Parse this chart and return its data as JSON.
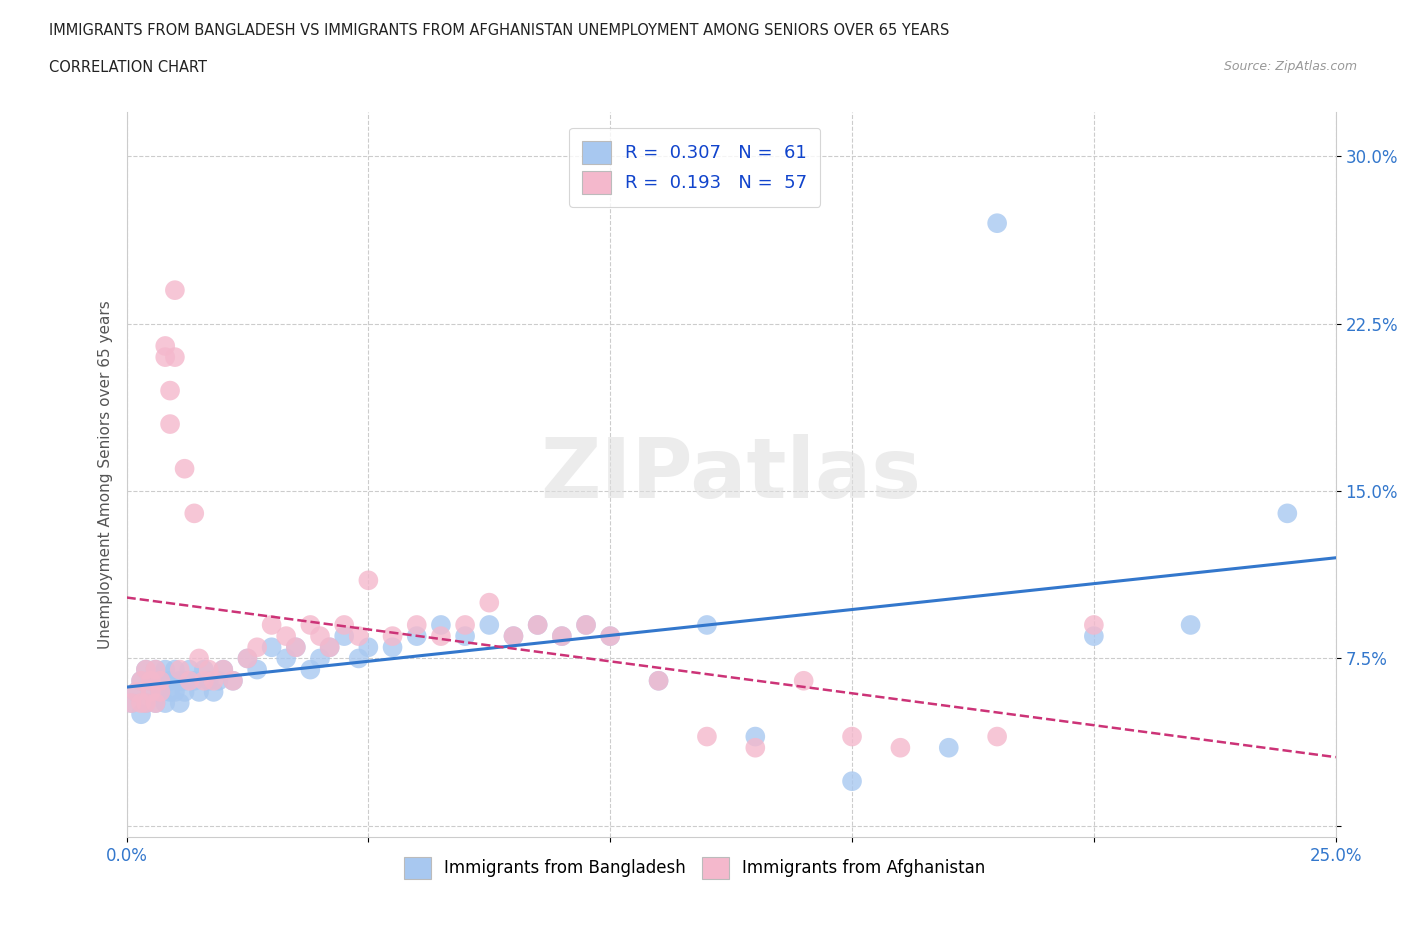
{
  "title_line1": "IMMIGRANTS FROM BANGLADESH VS IMMIGRANTS FROM AFGHANISTAN UNEMPLOYMENT AMONG SENIORS OVER 65 YEARS",
  "title_line2": "CORRELATION CHART",
  "source": "Source: ZipAtlas.com",
  "ylabel": "Unemployment Among Seniors over 65 years",
  "xlim": [
    0.0,
    0.25
  ],
  "ylim": [
    -0.005,
    0.32
  ],
  "xticks": [
    0.0,
    0.05,
    0.1,
    0.15,
    0.2,
    0.25
  ],
  "xticklabels": [
    "0.0%",
    "",
    "",
    "",
    "",
    "25.0%"
  ],
  "yticks": [
    0.0,
    0.075,
    0.15,
    0.225,
    0.3
  ],
  "yticklabels": [
    "",
    "7.5%",
    "15.0%",
    "22.5%",
    "30.0%"
  ],
  "R_bangladesh": 0.307,
  "N_bangladesh": 61,
  "R_afghanistan": 0.193,
  "N_afghanistan": 57,
  "color_bangladesh": "#a8c8f0",
  "color_afghanistan": "#f4b8cc",
  "line_color_bangladesh": "#3377cc",
  "line_color_afghanistan": "#cc3377",
  "tick_color": "#3377cc",
  "legend_text_color": "#1144cc",
  "legend_label_bangladesh": "Immigrants from Bangladesh",
  "legend_label_afghanistan": "Immigrants from Afghanistan",
  "watermark": "ZIPatlas",
  "bd_x": [
    0.001,
    0.002,
    0.003,
    0.003,
    0.004,
    0.004,
    0.005,
    0.005,
    0.006,
    0.006,
    0.007,
    0.007,
    0.008,
    0.008,
    0.009,
    0.009,
    0.01,
    0.01,
    0.011,
    0.011,
    0.012,
    0.012,
    0.013,
    0.014,
    0.015,
    0.016,
    0.017,
    0.018,
    0.019,
    0.02,
    0.022,
    0.025,
    0.027,
    0.03,
    0.033,
    0.035,
    0.038,
    0.04,
    0.042,
    0.045,
    0.048,
    0.05,
    0.055,
    0.06,
    0.065,
    0.07,
    0.075,
    0.08,
    0.085,
    0.09,
    0.095,
    0.1,
    0.11,
    0.12,
    0.13,
    0.15,
    0.17,
    0.18,
    0.2,
    0.22,
    0.24
  ],
  "bd_y": [
    0.055,
    0.06,
    0.065,
    0.05,
    0.07,
    0.055,
    0.06,
    0.065,
    0.07,
    0.055,
    0.06,
    0.065,
    0.07,
    0.055,
    0.06,
    0.065,
    0.07,
    0.06,
    0.065,
    0.055,
    0.06,
    0.065,
    0.07,
    0.065,
    0.06,
    0.07,
    0.065,
    0.06,
    0.065,
    0.07,
    0.065,
    0.075,
    0.07,
    0.08,
    0.075,
    0.08,
    0.07,
    0.075,
    0.08,
    0.085,
    0.075,
    0.08,
    0.08,
    0.085,
    0.09,
    0.085,
    0.09,
    0.085,
    0.09,
    0.085,
    0.09,
    0.085,
    0.065,
    0.09,
    0.04,
    0.02,
    0.035,
    0.27,
    0.085,
    0.09,
    0.14
  ],
  "af_x": [
    0.001,
    0.002,
    0.003,
    0.003,
    0.004,
    0.004,
    0.005,
    0.005,
    0.006,
    0.006,
    0.007,
    0.007,
    0.008,
    0.008,
    0.009,
    0.009,
    0.01,
    0.01,
    0.011,
    0.012,
    0.013,
    0.014,
    0.015,
    0.016,
    0.017,
    0.018,
    0.02,
    0.022,
    0.025,
    0.027,
    0.03,
    0.033,
    0.035,
    0.038,
    0.04,
    0.042,
    0.045,
    0.048,
    0.05,
    0.055,
    0.06,
    0.065,
    0.07,
    0.075,
    0.08,
    0.085,
    0.09,
    0.095,
    0.1,
    0.11,
    0.12,
    0.13,
    0.14,
    0.15,
    0.16,
    0.18,
    0.2
  ],
  "af_y": [
    0.055,
    0.06,
    0.065,
    0.055,
    0.07,
    0.055,
    0.06,
    0.065,
    0.07,
    0.055,
    0.06,
    0.065,
    0.21,
    0.215,
    0.195,
    0.18,
    0.21,
    0.24,
    0.07,
    0.16,
    0.065,
    0.14,
    0.075,
    0.065,
    0.07,
    0.065,
    0.07,
    0.065,
    0.075,
    0.08,
    0.09,
    0.085,
    0.08,
    0.09,
    0.085,
    0.08,
    0.09,
    0.085,
    0.11,
    0.085,
    0.09,
    0.085,
    0.09,
    0.1,
    0.085,
    0.09,
    0.085,
    0.09,
    0.085,
    0.065,
    0.04,
    0.035,
    0.065,
    0.04,
    0.035,
    0.04,
    0.09
  ]
}
